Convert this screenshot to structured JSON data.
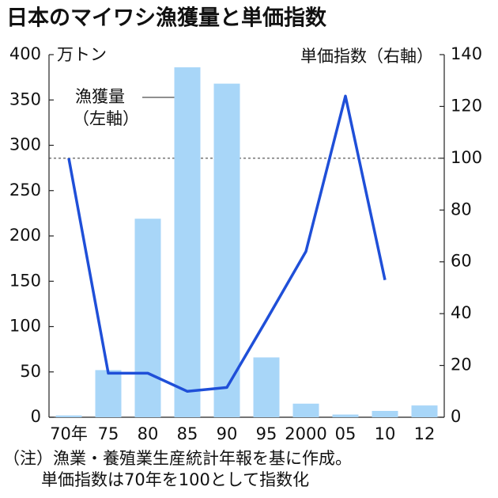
{
  "chart_data": {
    "type": "bar_line",
    "title": "日本のマイワシ漁獲量と単価指数",
    "y_unit": "万トン",
    "categories": [
      "70年",
      "75",
      "80",
      "85",
      "90",
      "95",
      "2000",
      "05",
      "10",
      "12"
    ],
    "series": [
      {
        "name": "漁獲量",
        "axis_note": "（左軸）",
        "type": "bar",
        "color": "#a8d6f8",
        "values": [
          2,
          52,
          219,
          386,
          368,
          66,
          15,
          3,
          7,
          13
        ]
      },
      {
        "name": "単価指数（右軸）",
        "type": "line",
        "axis": "y2",
        "color": "#1f4fd8",
        "values": [
          100,
          17,
          17,
          10,
          11.5,
          37.5,
          64,
          124,
          53,
          null
        ]
      }
    ],
    "ylim": [
      0,
      400
    ],
    "yticks": [
      0,
      50,
      100,
      150,
      200,
      250,
      300,
      350,
      400
    ],
    "y2lim": [
      0,
      140
    ],
    "y2ticks": [
      0,
      20,
      40,
      60,
      80,
      100,
      120,
      140
    ],
    "y2_reference": 100,
    "notes": [
      "（注）漁業・養殖業生産統計年報を基に作成。",
      "単価指数は70年を100として指数化"
    ]
  }
}
